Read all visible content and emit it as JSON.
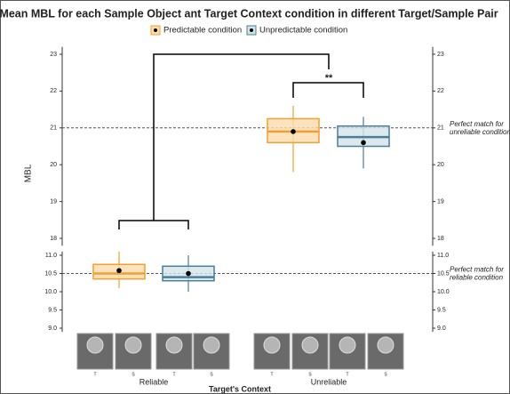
{
  "chart_data": {
    "type": "box",
    "title": "Mean MBL for each Sample Object ant Target Context condition in different Target/Sample Pair",
    "categories": [
      "Reliable",
      "Unreliable"
    ],
    "xlabel": "Target's Context",
    "ylabel": "MBL",
    "series": [
      {
        "name": "Predictable condition",
        "color": "#f0a030",
        "fill": "#fbdcae",
        "low": [
          10.1,
          19.8
        ],
        "q1": [
          10.35,
          20.6
        ],
        "median": [
          10.5,
          20.9
        ],
        "q3": [
          10.75,
          21.25
        ],
        "high": [
          11.1,
          21.6
        ],
        "mean": [
          10.58,
          20.9
        ]
      },
      {
        "name": "Unpredictable condition",
        "color": "#4a7f96",
        "fill": "#d3e3ea",
        "low": [
          10.0,
          19.9
        ],
        "q1": [
          10.3,
          20.5
        ],
        "median": [
          10.4,
          20.75
        ],
        "q3": [
          10.7,
          21.05
        ],
        "high": [
          11.0,
          21.3
        ],
        "mean": [
          10.5,
          20.6
        ]
      }
    ],
    "panels": [
      {
        "ylim": [
          17.8,
          23.2
        ],
        "yticks": [
          18,
          19,
          20,
          21,
          22,
          23
        ]
      },
      {
        "ylim": [
          8.9,
          11.1
        ],
        "yticks": [
          {
            "value": 9,
            "label": "9.0"
          },
          9.5,
          {
            "value": 10,
            "label": "10.0"
          },
          10.5,
          {
            "value": 11,
            "label": "11.0"
          }
        ]
      }
    ],
    "reference_lines": [
      {
        "value": 21,
        "label": [
          "Perfect match for",
          "unreliable condition"
        ]
      },
      {
        "value": 10.5,
        "label": [
          "Perfect match for",
          "reliable condition"
        ]
      }
    ],
    "significance": "**",
    "pair_labels": [
      "T",
      "S",
      "T",
      "S",
      "T",
      "S",
      "T",
      "S"
    ]
  }
}
